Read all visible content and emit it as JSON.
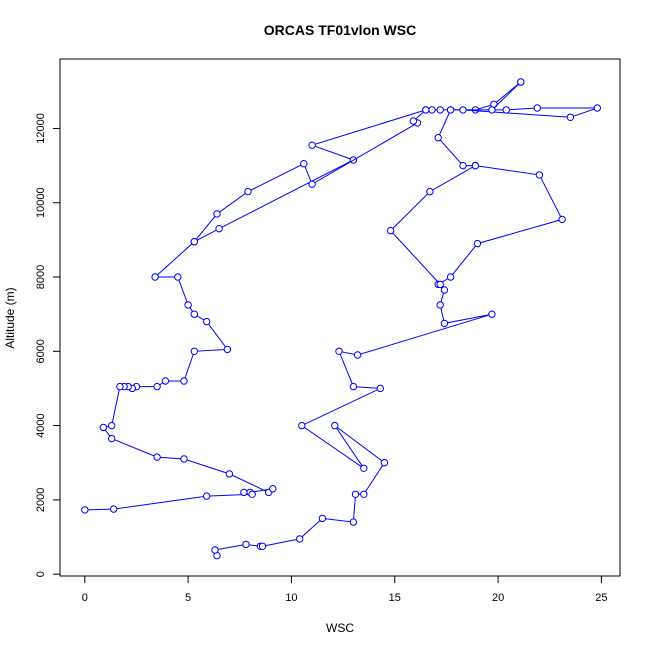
{
  "chart_data": {
    "type": "line",
    "title": "ORCAS TF01vlon WSC",
    "xlabel": "WSC",
    "ylabel": "Altitude (m)",
    "xlim": [
      -1.2,
      25.9
    ],
    "ylim": [
      -50,
      13870
    ],
    "xticks": [
      0,
      5,
      10,
      15,
      20,
      25
    ],
    "yticks": [
      0,
      2000,
      4000,
      6000,
      8000,
      10000,
      12000
    ],
    "grid": false,
    "line_color": "#0000ff",
    "marker": "open-circle",
    "series": [
      {
        "points": [
          [
            21.1,
            13250
          ],
          [
            19.8,
            12650
          ],
          [
            18.9,
            12500
          ],
          [
            17.7,
            12500
          ],
          [
            17.2,
            12500
          ],
          [
            16.8,
            12500
          ],
          [
            16.5,
            12500
          ],
          [
            11.0,
            11550
          ],
          [
            13.0,
            11150
          ],
          [
            6.5,
            9300
          ],
          [
            5.3,
            8950
          ],
          [
            3.4,
            8000
          ],
          [
            4.5,
            8000
          ],
          [
            5.0,
            7250
          ],
          [
            5.3,
            7000
          ],
          [
            5.9,
            6800
          ],
          [
            6.9,
            6050
          ],
          [
            5.3,
            6000
          ],
          [
            4.8,
            5200
          ],
          [
            3.9,
            5200
          ],
          [
            3.5,
            5050
          ],
          [
            2.5,
            5050
          ],
          [
            2.3,
            5000
          ],
          [
            2.1,
            5050
          ],
          [
            1.9,
            5050
          ],
          [
            1.7,
            5050
          ],
          [
            1.3,
            4000
          ],
          [
            0.9,
            3950
          ],
          [
            1.3,
            3650
          ],
          [
            3.5,
            3150
          ],
          [
            4.8,
            3100
          ],
          [
            7.0,
            2700
          ],
          [
            8.9,
            2200
          ],
          [
            9.1,
            2300
          ],
          [
            8.0,
            2200
          ],
          [
            7.7,
            2200
          ],
          [
            8.1,
            2150
          ],
          [
            5.9,
            2100
          ],
          [
            1.4,
            1750
          ],
          [
            0.0,
            1730
          ]
        ]
      },
      {
        "points": [
          [
            6.4,
            500
          ],
          [
            6.3,
            650
          ],
          [
            7.8,
            800
          ],
          [
            8.5,
            750
          ],
          [
            8.6,
            750
          ],
          [
            10.4,
            950
          ],
          [
            11.5,
            1500
          ],
          [
            13.0,
            1400
          ],
          [
            13.1,
            2150
          ],
          [
            13.5,
            2150
          ],
          [
            14.5,
            3000
          ],
          [
            12.1,
            4000
          ],
          [
            13.5,
            2850
          ],
          [
            10.5,
            4000
          ],
          [
            14.3,
            5000
          ],
          [
            13.0,
            5050
          ],
          [
            12.3,
            6000
          ],
          [
            13.2,
            5900
          ],
          [
            19.7,
            7000
          ],
          [
            17.4,
            6750
          ],
          [
            17.2,
            7250
          ],
          [
            17.4,
            7650
          ],
          [
            17.1,
            7800
          ],
          [
            17.7,
            8000
          ],
          [
            19.0,
            8900
          ],
          [
            23.1,
            9550
          ],
          [
            22.0,
            10750
          ],
          [
            18.9,
            11000
          ],
          [
            18.3,
            11000
          ],
          [
            17.1,
            11750
          ],
          [
            17.7,
            12500
          ],
          [
            20.4,
            12500
          ],
          [
            21.9,
            12550
          ],
          [
            24.8,
            12550
          ],
          [
            23.5,
            12300
          ],
          [
            18.3,
            12500
          ],
          [
            19.7,
            12500
          ],
          [
            21.1,
            13250
          ]
        ]
      },
      {
        "points": [
          [
            18.9,
            11000
          ],
          [
            16.7,
            10300
          ],
          [
            14.8,
            9250
          ],
          [
            17.2,
            7800
          ]
        ]
      },
      {
        "points": [
          [
            16.1,
            12150
          ],
          [
            11.0,
            10500
          ],
          [
            10.6,
            11050
          ],
          [
            7.9,
            10300
          ],
          [
            6.4,
            9700
          ],
          [
            5.3,
            8950
          ]
        ]
      },
      {
        "points": [
          [
            15.9,
            12200
          ],
          [
            16.5,
            12500
          ]
        ]
      }
    ]
  }
}
